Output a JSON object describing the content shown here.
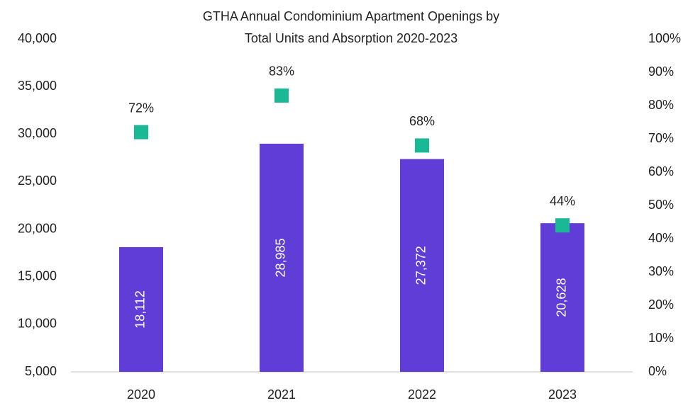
{
  "chart_data": {
    "type": "bar",
    "title": [
      "GTHA Annual Condominium Apartment Openings by",
      "Total Units and Absorption 2020-2023"
    ],
    "categories": [
      "2020",
      "2021",
      "2022",
      "2023"
    ],
    "series": [
      {
        "type": "bar",
        "color": "#5f3dd6",
        "values": [
          18112,
          28985,
          27372,
          20628
        ],
        "value_labels": [
          "18,112",
          "28,985",
          "27,372",
          "20,628"
        ]
      },
      {
        "type": "scatter",
        "marker": "square",
        "axis": "y2",
        "color": "#19b996",
        "values": [
          72,
          83,
          68,
          44
        ],
        "value_labels": [
          "72%",
          "83%",
          "68%",
          "44%"
        ]
      }
    ],
    "ylim": [
      5000,
      40000
    ],
    "yticks": [
      {
        "value": 5000,
        "label": "5,000"
      },
      {
        "value": 10000,
        "label": "10,000"
      },
      {
        "value": 15000,
        "label": "15,000"
      },
      {
        "value": 20000,
        "label": "20,000"
      },
      {
        "value": 25000,
        "label": "25,000"
      },
      {
        "value": 30000,
        "label": "30,000"
      },
      {
        "value": 35000,
        "label": "35,000"
      },
      {
        "value": 40000,
        "label": "40,000"
      }
    ],
    "y2lim": [
      0,
      100
    ],
    "y2ticks": [
      {
        "value": 0,
        "label": "0%"
      },
      {
        "value": 10,
        "label": "10%"
      },
      {
        "value": 20,
        "label": "20%"
      },
      {
        "value": 30,
        "label": "30%"
      },
      {
        "value": 40,
        "label": "40%"
      },
      {
        "value": 50,
        "label": "50%"
      },
      {
        "value": 60,
        "label": "60%"
      },
      {
        "value": 70,
        "label": "70%"
      },
      {
        "value": 80,
        "label": "80%"
      },
      {
        "value": 90,
        "label": "90%"
      },
      {
        "value": 100,
        "label": "100%"
      }
    ],
    "grid": false
  }
}
